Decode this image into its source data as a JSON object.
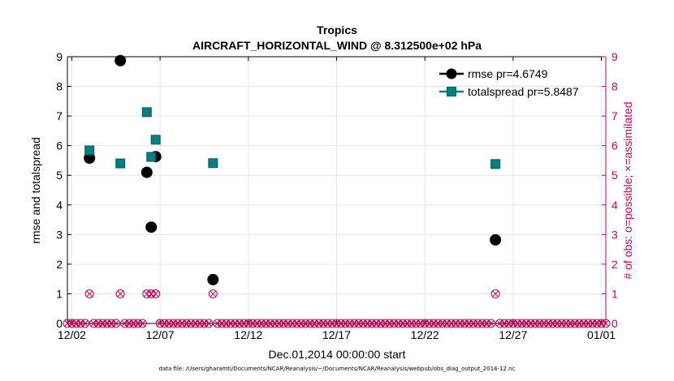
{
  "chart_data": {
    "type": "scatter",
    "title": "Tropics",
    "subtitle": "AIRCRAFT_HORIZONTAL_WIND @ 8.312500e+02 hPa",
    "xlabel": "Dec.01,2014 00:00:00 start",
    "ylabel": "rmse and totalspread",
    "ylabel_right": "# of obs: o=possible; ×=assimilated",
    "xlim": [
      1.75,
      32.25
    ],
    "ylim": [
      0,
      9
    ],
    "ylim_right": [
      0,
      9
    ],
    "grid": true,
    "legend_position": "top-right",
    "x_ticks": [
      {
        "x": 2,
        "label": "12/02"
      },
      {
        "x": 7,
        "label": "12/07"
      },
      {
        "x": 12,
        "label": "12/12"
      },
      {
        "x": 17,
        "label": "12/17"
      },
      {
        "x": 22,
        "label": "12/22"
      },
      {
        "x": 27,
        "label": "12/27"
      },
      {
        "x": 32,
        "label": "01/01"
      }
    ],
    "y_ticks": [
      0,
      1,
      2,
      3,
      4,
      5,
      6,
      7,
      8,
      9
    ],
    "series": [
      {
        "name": "rmse",
        "legend_label": "rmse pr=4.6749",
        "color": "#000000",
        "marker": "circle",
        "points": [
          {
            "x": 3.0,
            "y": 5.58
          },
          {
            "x": 4.75,
            "y": 8.87
          },
          {
            "x": 6.25,
            "y": 5.1
          },
          {
            "x": 6.5,
            "y": 3.25
          },
          {
            "x": 6.75,
            "y": 5.63
          },
          {
            "x": 10.0,
            "y": 1.48
          },
          {
            "x": 26.0,
            "y": 2.82
          }
        ]
      },
      {
        "name": "totalspread",
        "legend_label": "totalspread pr=5.8487",
        "color": "#008080",
        "marker": "square",
        "points": [
          {
            "x": 3.0,
            "y": 5.84
          },
          {
            "x": 4.75,
            "y": 5.4
          },
          {
            "x": 6.25,
            "y": 7.13
          },
          {
            "x": 6.5,
            "y": 5.62
          },
          {
            "x": 6.75,
            "y": 6.2
          },
          {
            "x": 10.0,
            "y": 5.41
          },
          {
            "x": 26.0,
            "y": 5.38
          }
        ]
      },
      {
        "name": "obs possible / assimilated",
        "color": "#cc0055",
        "marker": "circle-x",
        "axis": "right",
        "x_start": 1.75,
        "x_step": 0.25,
        "x_end": 32.25,
        "default_value": 0,
        "nonzero_points": [
          {
            "x": 3.0,
            "y": 1
          },
          {
            "x": 4.75,
            "y": 1
          },
          {
            "x": 6.25,
            "y": 1
          },
          {
            "x": 6.5,
            "y": 1
          },
          {
            "x": 6.75,
            "y": 1
          },
          {
            "x": 10.0,
            "y": 1
          },
          {
            "x": 26.0,
            "y": 1
          }
        ]
      }
    ]
  },
  "footer": "data file: /Users/gharamti/Documents/NCAR/Reanalysis/~/Documents/NCAR/Reanalysis/webpub/obs_diag_output_2014-12.nc",
  "colors": {
    "rmse": "#000000",
    "totalspread": "#008080",
    "obs": "#cc0055",
    "grid": "#e6e6e6"
  }
}
